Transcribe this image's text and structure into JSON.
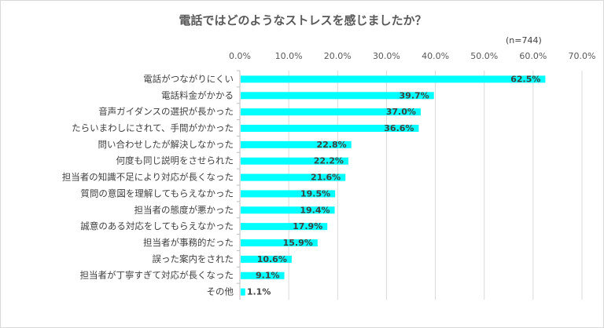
{
  "chart_data": {
    "type": "bar",
    "orientation": "horizontal",
    "title": "電話ではどのようなストレスを感じましたか？",
    "note": "(n=744)",
    "xlabel": "",
    "ylabel": "",
    "xlim": [
      0,
      70
    ],
    "xticks": [
      "0.0%",
      "10.0%",
      "20.0%",
      "30.0%",
      "40.0%",
      "50.0%",
      "60.0%",
      "70.0%"
    ],
    "xaxis_position": "top",
    "grid": true,
    "bar_color": "#00FFFF",
    "categories": [
      "電話がつながりにくい",
      "電話料金がかかる",
      "音声ガイダンスの選択が長かった",
      "たらいまわしにされて、手間がかかった",
      "問い合わせしたが解決しなかった",
      "何度も同じ説明をさせられた",
      "担当者の知識不足により対応が長くなった",
      "質問の意図を理解してもらえなかった",
      "担当者の態度が悪かった",
      "誠意のある対応をしてもらえなかった",
      "担当者が事務的だった",
      "誤った案内をされた",
      "担当者が丁寧すぎて対応が長くなった",
      "その他"
    ],
    "values": [
      62.5,
      39.7,
      37.0,
      36.6,
      22.8,
      22.2,
      21.6,
      19.5,
      19.4,
      17.9,
      15.9,
      10.6,
      9.1,
      1.1
    ],
    "data_labels": [
      "62.5%",
      "39.7%",
      "37.0%",
      "36.6%",
      "22.8%",
      "22.2%",
      "21.6%",
      "19.5%",
      "19.4%",
      "17.9%",
      "15.9%",
      "10.6%",
      "9.1%",
      "1.1%"
    ]
  }
}
